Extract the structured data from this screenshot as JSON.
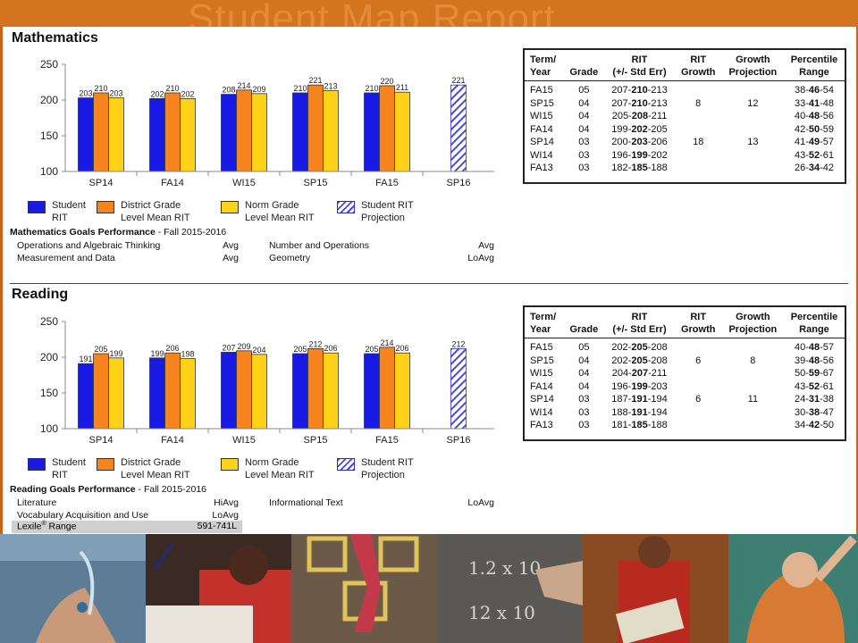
{
  "banner": {
    "title": "Student Map Report"
  },
  "math": {
    "title": "Mathematics",
    "chart_data": {
      "type": "bar",
      "categories": [
        "SP14",
        "FA14",
        "WI15",
        "SP15",
        "FA15",
        "SP16"
      ],
      "ylim": [
        100,
        250
      ],
      "yticks": [
        100,
        150,
        200,
        250
      ],
      "series": [
        {
          "name": "Student RIT",
          "values": [
            203,
            202,
            208,
            210,
            210,
            null
          ],
          "color": "#1a1ae6"
        },
        {
          "name": "District Grade Level Mean RIT",
          "values": [
            210,
            210,
            214,
            221,
            220,
            null
          ],
          "color": "#f5841f"
        },
        {
          "name": "Norm Grade Level Mean RIT",
          "values": [
            203,
            202,
            209,
            213,
            211,
            null
          ],
          "color": "#ffd21a"
        },
        {
          "name": "Student RIT Projection",
          "values": [
            null,
            null,
            null,
            null,
            null,
            221
          ],
          "pattern": "hatch",
          "color": "#3a3ad6"
        }
      ]
    },
    "legend": [
      {
        "label": "Student\nRIT",
        "color": "#1a1ae6",
        "style": "solid"
      },
      {
        "label": "District Grade\nLevel Mean RIT",
        "color": "#f5841f",
        "style": "solid"
      },
      {
        "label": "Norm Grade\nLevel Mean RIT",
        "color": "#ffd21a",
        "style": "solid"
      },
      {
        "label": "Student RIT\nProjection",
        "color": "#3a3ad6",
        "style": "hatch"
      }
    ],
    "goals": {
      "heading": "Mathematics Goals Performance",
      "term": " - Fall 2015-2016",
      "items": [
        {
          "name": "Operations and Algebraic Thinking",
          "value": "Avg"
        },
        {
          "name": "Number and Operations",
          "value": "Avg"
        },
        {
          "name": "Measurement and Data",
          "value": "Avg"
        },
        {
          "name": "Geometry",
          "value": "LoAvg"
        }
      ]
    },
    "table": {
      "headers": [
        "Term/\nYear",
        "Grade",
        "RIT\n(+/- Std Err)",
        "RIT\nGrowth",
        "Growth\nProjection",
        "Percentile\nRange"
      ],
      "rows": [
        {
          "term": "FA15",
          "grade": "05",
          "rit_lo": "207-",
          "rit": "210",
          "rit_hi": "-213",
          "growth": "",
          "proj": "",
          "p_lo": "38-",
          "p": "46",
          "p_hi": "-54"
        },
        {
          "term": "SP15",
          "grade": "04",
          "rit_lo": "207-",
          "rit": "210",
          "rit_hi": "-213",
          "growth": "8",
          "proj": "12",
          "p_lo": "33-",
          "p": "41",
          "p_hi": "-48"
        },
        {
          "term": "WI15",
          "grade": "04",
          "rit_lo": "205-",
          "rit": "208",
          "rit_hi": "-211",
          "growth": "",
          "proj": "",
          "p_lo": "40-",
          "p": "48",
          "p_hi": "-56"
        },
        {
          "term": "FA14",
          "grade": "04",
          "rit_lo": "199-",
          "rit": "202",
          "rit_hi": "-205",
          "growth": "",
          "proj": "",
          "p_lo": "42-",
          "p": "50",
          "p_hi": "-59"
        },
        {
          "term": "SP14",
          "grade": "03",
          "rit_lo": "200-",
          "rit": "203",
          "rit_hi": "-206",
          "growth": "18",
          "proj": "13",
          "p_lo": "41-",
          "p": "49",
          "p_hi": "-57"
        },
        {
          "term": "WI14",
          "grade": "03",
          "rit_lo": "196-",
          "rit": "199",
          "rit_hi": "-202",
          "growth": "",
          "proj": "",
          "p_lo": "43-",
          "p": "52",
          "p_hi": "-61"
        },
        {
          "term": "FA13",
          "grade": "03",
          "rit_lo": "182-",
          "rit": "185",
          "rit_hi": "-188",
          "growth": "",
          "proj": "",
          "p_lo": "26-",
          "p": "34",
          "p_hi": "-42"
        }
      ]
    }
  },
  "reading": {
    "title": "Reading",
    "chart_data": {
      "type": "bar",
      "categories": [
        "SP14",
        "FA14",
        "WI15",
        "SP15",
        "FA15",
        "SP16"
      ],
      "ylim": [
        100,
        250
      ],
      "yticks": [
        100,
        150,
        200,
        250
      ],
      "series": [
        {
          "name": "Student RIT",
          "values": [
            191,
            199,
            207,
            205,
            205,
            null
          ],
          "color": "#1a1ae6"
        },
        {
          "name": "District Grade Level Mean RIT",
          "values": [
            205,
            206,
            209,
            212,
            214,
            null
          ],
          "color": "#f5841f"
        },
        {
          "name": "Norm Grade Level Mean RIT",
          "values": [
            199,
            198,
            204,
            206,
            206,
            null
          ],
          "color": "#ffd21a"
        },
        {
          "name": "Student RIT Projection",
          "values": [
            null,
            null,
            null,
            null,
            null,
            212
          ],
          "pattern": "hatch",
          "color": "#3a3ad6"
        }
      ]
    },
    "legend": [
      {
        "label": "Student\nRIT",
        "color": "#1a1ae6",
        "style": "solid"
      },
      {
        "label": "District Grade\nLevel Mean RIT",
        "color": "#f5841f",
        "style": "solid"
      },
      {
        "label": "Norm Grade\nLevel Mean RIT",
        "color": "#ffd21a",
        "style": "solid"
      },
      {
        "label": "Student RIT\nProjection",
        "color": "#3a3ad6",
        "style": "hatch"
      }
    ],
    "goals": {
      "heading": "Reading Goals Performance",
      "term": " - Fall 2015-2016",
      "items": [
        {
          "name": "Literature",
          "value": "HiAvg"
        },
        {
          "name": "Informational Text",
          "value": "LoAvg"
        },
        {
          "name": "Vocabulary Acquisition and Use",
          "value": "LoAvg"
        }
      ],
      "lexile": {
        "label": "Lexile",
        "sup": "®",
        "label_rest": " Range",
        "value": "591-741L"
      }
    },
    "table": {
      "headers": [
        "Term/\nYear",
        "Grade",
        "RIT\n(+/- Std Err)",
        "RIT\nGrowth",
        "Growth\nProjection",
        "Percentile\nRange"
      ],
      "rows": [
        {
          "term": "FA15",
          "grade": "05",
          "rit_lo": "202-",
          "rit": "205",
          "rit_hi": "-208",
          "growth": "",
          "proj": "",
          "p_lo": "40-",
          "p": "48",
          "p_hi": "-57"
        },
        {
          "term": "SP15",
          "grade": "04",
          "rit_lo": "202-",
          "rit": "205",
          "rit_hi": "-208",
          "growth": "6",
          "proj": "8",
          "p_lo": "39-",
          "p": "48",
          "p_hi": "-56"
        },
        {
          "term": "WI15",
          "grade": "04",
          "rit_lo": "204-",
          "rit": "207",
          "rit_hi": "-211",
          "growth": "",
          "proj": "",
          "p_lo": "50-",
          "p": "59",
          "p_hi": "-67"
        },
        {
          "term": "FA14",
          "grade": "04",
          "rit_lo": "196-",
          "rit": "199",
          "rit_hi": "-203",
          "growth": "",
          "proj": "",
          "p_lo": "43-",
          "p": "52",
          "p_hi": "-61"
        },
        {
          "term": "SP14",
          "grade": "03",
          "rit_lo": "187-",
          "rit": "191",
          "rit_hi": "-194",
          "growth": "6",
          "proj": "11",
          "p_lo": "24-",
          "p": "31",
          "p_hi": "-38"
        },
        {
          "term": "WI14",
          "grade": "03",
          "rit_lo": "188-",
          "rit": "191",
          "rit_hi": "-194",
          "growth": "",
          "proj": "",
          "p_lo": "30-",
          "p": "38",
          "p_hi": "-47"
        },
        {
          "term": "FA13",
          "grade": "03",
          "rit_lo": "181-",
          "rit": "185",
          "rit_hi": "-188",
          "growth": "",
          "proj": "",
          "p_lo": "34-",
          "p": "42",
          "p_hi": "-50"
        }
      ]
    }
  },
  "photo_strip": {
    "tones": [
      "#6f8ea6",
      "#8a3a2a",
      "#b9a07a",
      "#6f6a62",
      "#8d2a1e",
      "#4e8a7e"
    ]
  }
}
